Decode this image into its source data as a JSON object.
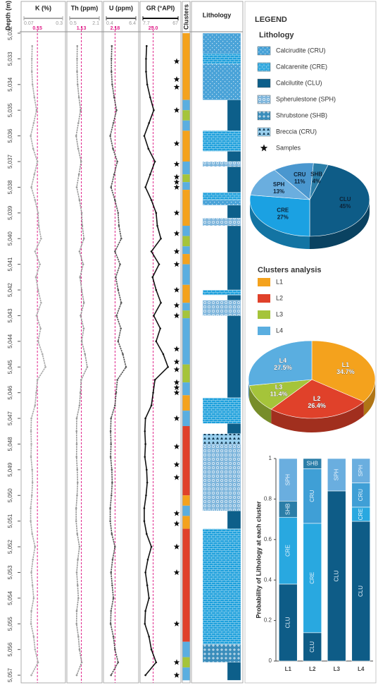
{
  "legend": {
    "title": "LEGEND",
    "lithology_title": "Lithology",
    "lithology": [
      {
        "label": "Calcirudite (CRU)",
        "color": "#4aa3d8",
        "pattern": "dots"
      },
      {
        "label": "Calcarenite (CRE)",
        "color": "#1ea0dc",
        "pattern": "bricks"
      },
      {
        "label": "Calcilutite (CLU)",
        "color": "#0d5f8a",
        "pattern": "plain"
      },
      {
        "label": "Spherulestone (SPH)",
        "color": "#7fb6dc",
        "pattern": "circles"
      },
      {
        "label": "Shrubstone (SHB)",
        "color": "#3a8dbb",
        "pattern": "cross"
      },
      {
        "label": "Breccia (CRU)",
        "color": "#9ad0ef",
        "pattern": "triangles"
      }
    ],
    "samples": "Samples",
    "clusters_title": "Clusters analysis",
    "clusters": [
      {
        "name": "L1",
        "color": "#f4a21d"
      },
      {
        "name": "L2",
        "color": "#e0412a"
      },
      {
        "name": "L3",
        "color": "#a5c43a"
      },
      {
        "name": "L4",
        "color": "#5aaee0"
      }
    ]
  },
  "chart_data": [
    {
      "type": "well-log",
      "ylabel": "Depth (m)",
      "ylim": [
        5032,
        5057.3
      ],
      "yticks": [
        {
          "value": 5032,
          "label": "5,032"
        },
        {
          "value": 5033,
          "label": "5,033"
        },
        {
          "value": 5034,
          "label": "5,034"
        },
        {
          "value": 5035,
          "label": "5,035"
        },
        {
          "value": 5036,
          "label": "5,036"
        },
        {
          "value": 5037,
          "label": "5,037"
        },
        {
          "value": 5038,
          "label": "5,038"
        },
        {
          "value": 5039,
          "label": "5,039"
        },
        {
          "value": 5040,
          "label": "5,040"
        },
        {
          "value": 5041,
          "label": "5,041"
        },
        {
          "value": 5042,
          "label": "5,042"
        },
        {
          "value": 5043,
          "label": "5,043"
        },
        {
          "value": 5044,
          "label": "5,044"
        },
        {
          "value": 5045,
          "label": "5,045"
        },
        {
          "value": 5046,
          "label": "5,046"
        },
        {
          "value": 5047,
          "label": "5,047"
        },
        {
          "value": 5048,
          "label": "5,048"
        },
        {
          "value": 5049,
          "label": "5,049"
        },
        {
          "value": 5050,
          "label": "5,050"
        },
        {
          "value": 5051,
          "label": "5,051"
        },
        {
          "value": 5052,
          "label": "5,052"
        },
        {
          "value": 5053,
          "label": "5,053"
        },
        {
          "value": 5054,
          "label": "5,054"
        },
        {
          "value": 5055,
          "label": "5,055"
        },
        {
          "value": 5056,
          "label": "5,056"
        },
        {
          "value": 5057,
          "label": "5,057"
        }
      ],
      "depth": [
        5032.5,
        5033,
        5033.5,
        5034,
        5034.5,
        5035,
        5035.5,
        5036,
        5036.5,
        5037,
        5037.5,
        5038,
        5038.5,
        5039,
        5039.5,
        5040,
        5040.5,
        5041,
        5041.5,
        5042,
        5042.5,
        5043,
        5043.5,
        5044,
        5044.5,
        5045,
        5045.5,
        5046,
        5046.5,
        5047,
        5047.5,
        5048,
        5048.5,
        5049,
        5049.5,
        5050,
        5050.5,
        5051,
        5051.5,
        5052,
        5052.5,
        5053,
        5053.5,
        5054,
        5054.5,
        5055,
        5055.5,
        5056,
        5056.5,
        5057
      ],
      "tracks": [
        {
          "name": "K (%)",
          "color": "#aaaaaa",
          "xlim": [
            0.07,
            0.3
          ],
          "xticks": [
            0.07,
            0.3
          ],
          "cutoff": 0.15,
          "values": [
            0.119,
            0.117,
            0.117,
            0.121,
            0.132,
            0.145,
            0.128,
            0.11,
            0.125,
            0.15,
            0.132,
            0.114,
            0.136,
            0.154,
            0.158,
            0.172,
            0.136,
            0.165,
            0.141,
            0.154,
            0.172,
            0.145,
            0.169,
            0.154,
            0.18,
            0.198,
            0.15,
            0.143,
            0.136,
            0.114,
            0.112,
            0.114,
            0.112,
            0.119,
            0.121,
            0.117,
            0.11,
            0.11,
            0.119,
            0.136,
            0.123,
            0.114,
            0.121,
            0.128,
            0.114,
            0.112,
            0.128,
            0.136,
            0.154,
            0.114
          ]
        },
        {
          "name": "Th (ppm)",
          "color": "#999999",
          "xlim": [
            0.5,
            2.1
          ],
          "xticks": [
            0.5,
            2.1
          ],
          "cutoff": 1.13,
          "values": [
            0.91,
            0.9,
            0.9,
            0.93,
            1.0,
            1.09,
            0.97,
            0.85,
            0.96,
            1.12,
            1.0,
            0.88,
            1.03,
            1.15,
            1.18,
            1.27,
            1.03,
            1.23,
            1.06,
            1.15,
            1.27,
            1.09,
            1.26,
            1.15,
            1.33,
            1.45,
            1.12,
            1.08,
            1.03,
            0.88,
            0.87,
            0.88,
            0.87,
            0.91,
            0.93,
            0.9,
            0.85,
            0.85,
            0.91,
            1.03,
            0.94,
            0.88,
            0.93,
            0.97,
            0.88,
            0.87,
            0.97,
            1.03,
            1.15,
            0.88
          ]
        },
        {
          "name": "U (ppm)",
          "color": "#555555",
          "xlim": [
            0.4,
            6.4
          ],
          "xticks": [
            0.4,
            6.4
          ],
          "cutoff": 2.18,
          "values": [
            1.52,
            1.44,
            1.44,
            1.6,
            2.0,
            2.48,
            1.84,
            1.2,
            1.76,
            2.64,
            2.0,
            1.36,
            2.16,
            2.8,
            2.96,
            3.44,
            2.16,
            3.2,
            2.32,
            2.8,
            3.44,
            2.48,
            3.36,
            2.8,
            3.76,
            4.4,
            2.64,
            2.4,
            2.16,
            1.36,
            1.28,
            1.36,
            1.28,
            1.52,
            1.6,
            1.44,
            1.2,
            1.2,
            1.52,
            2.16,
            1.68,
            1.36,
            1.6,
            1.84,
            1.36,
            1.28,
            1.84,
            2.16,
            2.8,
            1.36
          ]
        },
        {
          "name": "GR (°API)",
          "color": "#111111",
          "xlim": [
            7.7,
            67
          ],
          "xticks": [
            7.7,
            67
          ],
          "cutoff": {
            "value": 25,
            "label": "25.0"
          },
          "values": [
            14,
            13,
            13,
            15,
            20,
            26,
            18,
            10,
            17,
            28,
            20,
            12,
            22,
            30,
            32,
            38,
            22,
            35,
            24,
            30,
            38,
            26,
            37,
            30,
            42,
            50,
            28,
            25,
            22,
            12,
            11,
            12,
            11,
            14,
            15,
            13,
            10,
            10,
            14,
            22,
            16,
            12,
            15,
            18,
            12,
            11,
            18,
            22,
            30,
            12
          ]
        }
      ],
      "clusters_title": "Clusters",
      "clusters": [
        {
          "top": 5032,
          "base": 5034.6,
          "cluster": "L1"
        },
        {
          "top": 5034.6,
          "base": 5035,
          "cluster": "L4"
        },
        {
          "top": 5035,
          "base": 5035.4,
          "cluster": "L3"
        },
        {
          "top": 5035.4,
          "base": 5035.8,
          "cluster": "L4"
        },
        {
          "top": 5035.8,
          "base": 5037,
          "cluster": "L1"
        },
        {
          "top": 5037,
          "base": 5037.5,
          "cluster": "L4"
        },
        {
          "top": 5037.5,
          "base": 5037.8,
          "cluster": "L3"
        },
        {
          "top": 5037.8,
          "base": 5038.1,
          "cluster": "L4"
        },
        {
          "top": 5038.1,
          "base": 5039.5,
          "cluster": "L1"
        },
        {
          "top": 5039.5,
          "base": 5039.9,
          "cluster": "L4"
        },
        {
          "top": 5039.9,
          "base": 5040.3,
          "cluster": "L3"
        },
        {
          "top": 5040.3,
          "base": 5040.6,
          "cluster": "L4"
        },
        {
          "top": 5040.6,
          "base": 5041,
          "cluster": "L1"
        },
        {
          "top": 5041,
          "base": 5041.8,
          "cluster": "L4"
        },
        {
          "top": 5041.8,
          "base": 5042.5,
          "cluster": "L1"
        },
        {
          "top": 5042.5,
          "base": 5042.8,
          "cluster": "L4"
        },
        {
          "top": 5042.8,
          "base": 5043.1,
          "cluster": "L3"
        },
        {
          "top": 5043.1,
          "base": 5044.9,
          "cluster": "L4"
        },
        {
          "top": 5044.9,
          "base": 5045.6,
          "cluster": "L3"
        },
        {
          "top": 5045.6,
          "base": 5046.1,
          "cluster": "L4"
        },
        {
          "top": 5046.1,
          "base": 5046.7,
          "cluster": "L1"
        },
        {
          "top": 5046.7,
          "base": 5047.3,
          "cluster": "L4"
        },
        {
          "top": 5047.3,
          "base": 5050,
          "cluster": "L2"
        },
        {
          "top": 5050,
          "base": 5050.4,
          "cluster": "L1"
        },
        {
          "top": 5050.4,
          "base": 5050.8,
          "cluster": "L4"
        },
        {
          "top": 5050.8,
          "base": 5051.3,
          "cluster": "L1"
        },
        {
          "top": 5051.3,
          "base": 5055.7,
          "cluster": "L2"
        },
        {
          "top": 5055.7,
          "base": 5056.3,
          "cluster": "L4"
        },
        {
          "top": 5056.3,
          "base": 5056.7,
          "cluster": "L3"
        },
        {
          "top": 5056.7,
          "base": 5057.2,
          "cluster": "L4"
        }
      ],
      "samples": [
        5033.1,
        5033.8,
        5034.1,
        5035,
        5036.3,
        5037.1,
        5037.6,
        5037.8,
        5038,
        5039,
        5039.8,
        5040.5,
        5041,
        5042,
        5042.6,
        5043,
        5044.3,
        5044.8,
        5045.1,
        5045.6,
        5045.8,
        5046,
        5047,
        5048.1,
        5048.8,
        5049.3,
        5050.7,
        5051.1,
        5052,
        5053,
        5055,
        5056.5,
        5057
      ],
      "lithology_title": "Lithology",
      "lithology": [
        {
          "top": 5032,
          "base": 5032.8,
          "type": "Calcirudite (CRU)"
        },
        {
          "top": 5032.8,
          "base": 5033.2,
          "type": "Calcarenite (CRE)"
        },
        {
          "top": 5033.2,
          "base": 5034.6,
          "type": "Calcirudite (CRU)"
        },
        {
          "top": 5034.6,
          "base": 5035.8,
          "type": "Calcilutite (CLU)"
        },
        {
          "top": 5035.8,
          "base": 5036.6,
          "type": "Calcarenite (CRE)"
        },
        {
          "top": 5036.6,
          "base": 5037,
          "type": "Calcilutite (CLU)"
        },
        {
          "top": 5037,
          "base": 5037.2,
          "type": "Spherulestone (SPH)"
        },
        {
          "top": 5037.2,
          "base": 5038.2,
          "type": "Calcilutite (CLU)"
        },
        {
          "top": 5038.2,
          "base": 5038.5,
          "type": "Calcarenite (CRE)"
        },
        {
          "top": 5038.5,
          "base": 5038.7,
          "type": "Calcirudite (CRU)"
        },
        {
          "top": 5038.7,
          "base": 5039.2,
          "type": "Calcilutite (CLU)"
        },
        {
          "top": 5039.2,
          "base": 5039.5,
          "type": "Spherulestone (SPH)"
        },
        {
          "top": 5039.5,
          "base": 5042,
          "type": "Calcilutite (CLU)"
        },
        {
          "top": 5042,
          "base": 5042.2,
          "type": "Calcarenite (CRE)"
        },
        {
          "top": 5042.2,
          "base": 5042.4,
          "type": "Calcilutite (CLU)"
        },
        {
          "top": 5042.4,
          "base": 5043,
          "type": "Spherulestone (SPH)"
        },
        {
          "top": 5043,
          "base": 5046.2,
          "type": "Calcilutite (CLU)"
        },
        {
          "top": 5046.2,
          "base": 5047.2,
          "type": "Calcarenite (CRE)"
        },
        {
          "top": 5047.2,
          "base": 5047.6,
          "type": "Calcilutite (CLU)"
        },
        {
          "top": 5047.6,
          "base": 5048,
          "type": "Breccia (CRU)"
        },
        {
          "top": 5048,
          "base": 5050.6,
          "type": "Spherulestone (SPH)"
        },
        {
          "top": 5050.6,
          "base": 5051.3,
          "type": "Calcilutite (CLU)"
        },
        {
          "top": 5051.3,
          "base": 5055.8,
          "type": "Calcarenite (CRE)"
        },
        {
          "top": 5055.8,
          "base": 5056.5,
          "type": "Shrubstone (SHB)"
        },
        {
          "top": 5056.5,
          "base": 5057.2,
          "type": "Calcilutite (CLU)"
        }
      ]
    },
    {
      "type": "pie",
      "categories": [
        "CLU",
        "CRE",
        "SPH",
        "CRU",
        "SHB"
      ],
      "values": [
        45,
        27,
        13,
        11,
        4
      ],
      "value_labels": [
        "45%",
        "27%",
        "13%",
        "11%",
        "4%"
      ],
      "colors": [
        "#0e5c87",
        "#1ba1e2",
        "#6aaedf",
        "#4a97cf",
        "#2b7ea8"
      ]
    },
    {
      "type": "pie",
      "categories": [
        "L1",
        "L2",
        "L3",
        "L4"
      ],
      "values": [
        34.7,
        26.4,
        11.4,
        27.5
      ],
      "value_labels": [
        "34.7%",
        "26.4%",
        "11.4%",
        "27.5%"
      ],
      "colors": [
        "#f4a21d",
        "#e0412a",
        "#a5c43a",
        "#5aaee0"
      ]
    },
    {
      "type": "stacked-bar",
      "ylabel": "Probability of Lithology at each cluster",
      "categories": [
        "L1",
        "L2",
        "L3",
        "L4"
      ],
      "ylim": [
        0,
        1
      ],
      "yticks": [
        0,
        0.2,
        0.4,
        0.6,
        0.8,
        1
      ],
      "series": [
        {
          "name": "CLU",
          "color": "#0e5c87",
          "values": [
            0.38,
            0.14,
            0.84,
            0.69
          ]
        },
        {
          "name": "CRE",
          "color": "#29a8e0",
          "values": [
            0.33,
            0.54,
            0,
            0.07
          ]
        },
        {
          "name": "CRU",
          "color": "#3f9fd6",
          "values": [
            0,
            0.27,
            0,
            0.12
          ]
        },
        {
          "name": "SHB",
          "color": "#2b7ea8",
          "values": [
            0.08,
            0.05,
            0,
            0
          ]
        },
        {
          "name": "SPH",
          "color": "#6aaedf",
          "values": [
            0.21,
            0,
            0.16,
            0.12
          ]
        }
      ]
    }
  ]
}
